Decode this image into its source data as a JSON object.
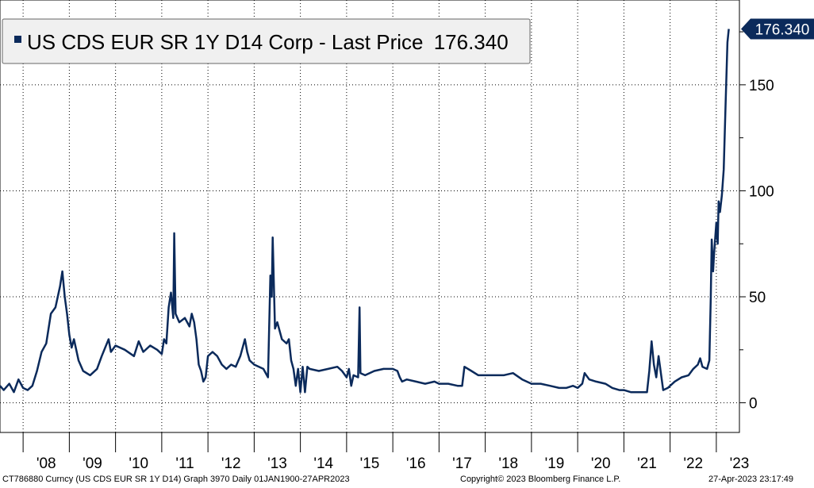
{
  "legend": {
    "series_label": "US CDS EUR SR 1Y D14 Corp - Last Price",
    "last_value": "176.340"
  },
  "last_price_tag": "176.340",
  "footer": {
    "left": "CT786880 Curncy (US CDS EUR SR 1Y D14) Graph 3970  Daily 01JAN1900-27APR2023",
    "center": "Copyright© 2023 Bloomberg Finance L.P.",
    "right": "27-Apr-2023 23:17:49"
  },
  "colors": {
    "series": "#0b2a5b",
    "grid": "#000000",
    "tag_bg": "#0b2a5b",
    "tag_text": "#ffffff"
  },
  "chart_data": {
    "type": "line",
    "x_tick_labels": [
      "'08",
      "'09",
      "'10",
      "'11",
      "'12",
      "'13",
      "'14",
      "'15",
      "'16",
      "'17",
      "'18",
      "'19",
      "'20",
      "'21",
      "'22",
      "'23"
    ],
    "y_tick_labels": [
      "0",
      "50",
      "100",
      "150"
    ],
    "y_ticks": [
      0,
      50,
      100,
      150
    ],
    "ylim": [
      -14,
      190
    ],
    "xlim": [
      2007.5,
      2023.5
    ],
    "grid": true,
    "legend_position": "top-left",
    "series": [
      {
        "name": "US CDS EUR SR 1Y D14 Corp - Last Price",
        "points": [
          [
            2007.5,
            8
          ],
          [
            2007.58,
            6
          ],
          [
            2007.7,
            9
          ],
          [
            2007.8,
            5
          ],
          [
            2007.9,
            11
          ],
          [
            2008.0,
            7
          ],
          [
            2008.1,
            6
          ],
          [
            2008.2,
            8
          ],
          [
            2008.3,
            15
          ],
          [
            2008.4,
            24
          ],
          [
            2008.5,
            28
          ],
          [
            2008.6,
            42
          ],
          [
            2008.7,
            45
          ],
          [
            2008.8,
            55
          ],
          [
            2008.85,
            62
          ],
          [
            2008.9,
            50
          ],
          [
            2008.95,
            42
          ],
          [
            2009.0,
            32
          ],
          [
            2009.05,
            26
          ],
          [
            2009.1,
            30
          ],
          [
            2009.2,
            20
          ],
          [
            2009.3,
            15
          ],
          [
            2009.45,
            13
          ],
          [
            2009.6,
            16
          ],
          [
            2009.7,
            22
          ],
          [
            2009.85,
            30
          ],
          [
            2009.9,
            24
          ],
          [
            2010.0,
            27
          ],
          [
            2010.2,
            25
          ],
          [
            2010.4,
            22
          ],
          [
            2010.5,
            29
          ],
          [
            2010.6,
            24
          ],
          [
            2010.75,
            27
          ],
          [
            2010.9,
            25
          ],
          [
            2011.0,
            23
          ],
          [
            2011.05,
            30
          ],
          [
            2011.1,
            28
          ],
          [
            2011.15,
            45
          ],
          [
            2011.2,
            52
          ],
          [
            2011.25,
            40
          ],
          [
            2011.27,
            80
          ],
          [
            2011.3,
            42
          ],
          [
            2011.38,
            38
          ],
          [
            2011.5,
            40
          ],
          [
            2011.6,
            36
          ],
          [
            2011.65,
            42
          ],
          [
            2011.7,
            38
          ],
          [
            2011.75,
            30
          ],
          [
            2011.8,
            18
          ],
          [
            2011.85,
            15
          ],
          [
            2011.9,
            10
          ],
          [
            2011.95,
            12
          ],
          [
            2012.0,
            22
          ],
          [
            2012.1,
            24
          ],
          [
            2012.2,
            22
          ],
          [
            2012.3,
            18
          ],
          [
            2012.4,
            16
          ],
          [
            2012.5,
            18
          ],
          [
            2012.6,
            17
          ],
          [
            2012.7,
            22
          ],
          [
            2012.8,
            30
          ],
          [
            2012.85,
            24
          ],
          [
            2012.9,
            20
          ],
          [
            2013.0,
            18
          ],
          [
            2013.2,
            16
          ],
          [
            2013.3,
            12
          ],
          [
            2013.35,
            60
          ],
          [
            2013.38,
            50
          ],
          [
            2013.4,
            78
          ],
          [
            2013.45,
            35
          ],
          [
            2013.5,
            38
          ],
          [
            2013.6,
            30
          ],
          [
            2013.7,
            28
          ],
          [
            2013.75,
            30
          ],
          [
            2013.8,
            20
          ],
          [
            2013.85,
            16
          ],
          [
            2013.9,
            8
          ],
          [
            2013.95,
            16
          ],
          [
            2014.0,
            5
          ],
          [
            2014.05,
            17
          ],
          [
            2014.1,
            5
          ],
          [
            2014.15,
            17
          ],
          [
            2014.2,
            16
          ],
          [
            2014.4,
            15
          ],
          [
            2014.6,
            16
          ],
          [
            2014.8,
            17
          ],
          [
            2014.9,
            15
          ],
          [
            2015.0,
            12
          ],
          [
            2015.05,
            16
          ],
          [
            2015.1,
            8
          ],
          [
            2015.15,
            13
          ],
          [
            2015.25,
            12
          ],
          [
            2015.28,
            45
          ],
          [
            2015.3,
            14
          ],
          [
            2015.4,
            13
          ],
          [
            2015.6,
            15
          ],
          [
            2015.8,
            16
          ],
          [
            2016.0,
            16
          ],
          [
            2016.1,
            15
          ],
          [
            2016.15,
            12
          ],
          [
            2016.2,
            10
          ],
          [
            2016.3,
            11
          ],
          [
            2016.5,
            10
          ],
          [
            2016.7,
            9
          ],
          [
            2016.9,
            10
          ],
          [
            2017.0,
            9
          ],
          [
            2017.2,
            9
          ],
          [
            2017.4,
            8
          ],
          [
            2017.5,
            8
          ],
          [
            2017.55,
            17
          ],
          [
            2017.7,
            15
          ],
          [
            2017.85,
            13
          ],
          [
            2018.0,
            13
          ],
          [
            2018.2,
            13
          ],
          [
            2018.4,
            13
          ],
          [
            2018.6,
            14
          ],
          [
            2018.8,
            11
          ],
          [
            2019.0,
            9
          ],
          [
            2019.2,
            9
          ],
          [
            2019.4,
            8
          ],
          [
            2019.6,
            7
          ],
          [
            2019.75,
            7
          ],
          [
            2019.9,
            8
          ],
          [
            2020.0,
            7
          ],
          [
            2020.1,
            9
          ],
          [
            2020.15,
            14
          ],
          [
            2020.25,
            11
          ],
          [
            2020.4,
            10
          ],
          [
            2020.6,
            9
          ],
          [
            2020.75,
            7
          ],
          [
            2020.9,
            6
          ],
          [
            2021.0,
            6
          ],
          [
            2021.15,
            5
          ],
          [
            2021.3,
            5
          ],
          [
            2021.45,
            5
          ],
          [
            2021.5,
            5
          ],
          [
            2021.55,
            15
          ],
          [
            2021.6,
            29
          ],
          [
            2021.65,
            18
          ],
          [
            2021.7,
            12
          ],
          [
            2021.75,
            22
          ],
          [
            2021.8,
            14
          ],
          [
            2021.85,
            6
          ],
          [
            2021.95,
            7
          ],
          [
            2022.1,
            10
          ],
          [
            2022.25,
            12
          ],
          [
            2022.4,
            13
          ],
          [
            2022.5,
            16
          ],
          [
            2022.6,
            18
          ],
          [
            2022.65,
            21
          ],
          [
            2022.7,
            17
          ],
          [
            2022.8,
            16
          ],
          [
            2022.85,
            20
          ],
          [
            2022.88,
            50
          ],
          [
            2022.9,
            77
          ],
          [
            2022.93,
            62
          ],
          [
            2022.95,
            70
          ],
          [
            2023.0,
            85
          ],
          [
            2023.03,
            75
          ],
          [
            2023.05,
            95
          ],
          [
            2023.08,
            90
          ],
          [
            2023.12,
            98
          ],
          [
            2023.16,
            110
          ],
          [
            2023.2,
            140
          ],
          [
            2023.24,
            170
          ],
          [
            2023.27,
            176.34
          ]
        ]
      }
    ]
  }
}
